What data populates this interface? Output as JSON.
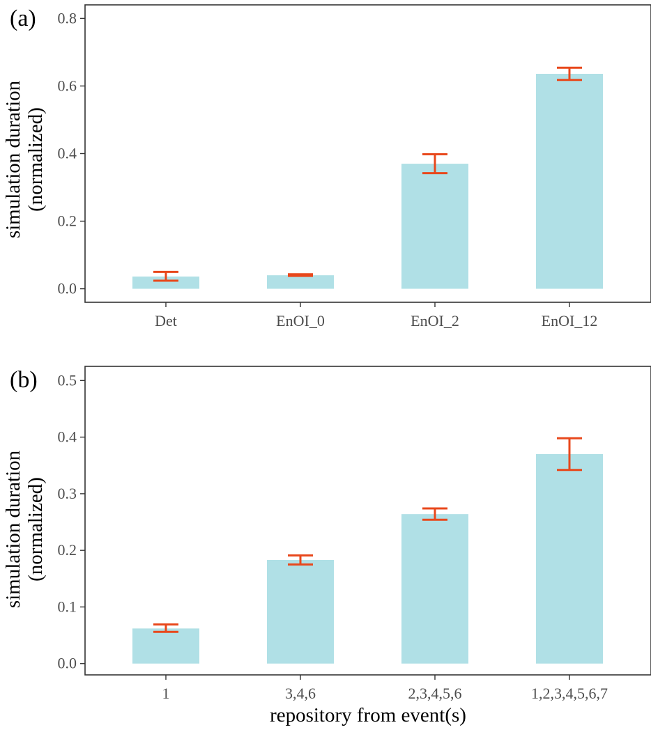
{
  "chart_data": [
    {
      "type": "bar",
      "panel_label": "(a)",
      "categories": [
        "Det",
        "EnOI_0",
        "EnOI_2",
        "EnOI_12"
      ],
      "values": [
        0.036,
        0.04,
        0.37,
        0.636
      ],
      "error_low": [
        0.024,
        0.038,
        0.342,
        0.618
      ],
      "error_high": [
        0.05,
        0.043,
        0.398,
        0.654
      ],
      "ylabel_line1": "simulation duration",
      "ylabel_line2": "(normalized)",
      "xlabel": "",
      "ylim": [
        -0.04,
        0.84
      ],
      "yticks": [
        0.0,
        0.2,
        0.4,
        0.6,
        0.8
      ],
      "ytick_labels": [
        "0.0",
        "0.2",
        "0.4",
        "0.6",
        "0.8"
      ],
      "bar_color": "#b0e0e6",
      "error_color": "#e8481c",
      "grid": false,
      "legend": "none"
    },
    {
      "type": "bar",
      "panel_label": "(b)",
      "categories": [
        "1",
        "3,4,6",
        "2,3,4,5,6",
        "1,2,3,4,5,6,7"
      ],
      "values": [
        0.062,
        0.183,
        0.264,
        0.37
      ],
      "error_low": [
        0.056,
        0.175,
        0.254,
        0.342
      ],
      "error_high": [
        0.069,
        0.191,
        0.274,
        0.398
      ],
      "ylabel_line1": "simulation duration",
      "ylabel_line2": "(normalized)",
      "xlabel": "repository from event(s)",
      "ylim": [
        -0.02,
        0.525
      ],
      "yticks": [
        0.0,
        0.1,
        0.2,
        0.3,
        0.4,
        0.5
      ],
      "ytick_labels": [
        "0.0",
        "0.1",
        "0.2",
        "0.3",
        "0.4",
        "0.5"
      ],
      "bar_color": "#b0e0e6",
      "error_color": "#e8481c",
      "grid": false,
      "legend": "none"
    }
  ]
}
